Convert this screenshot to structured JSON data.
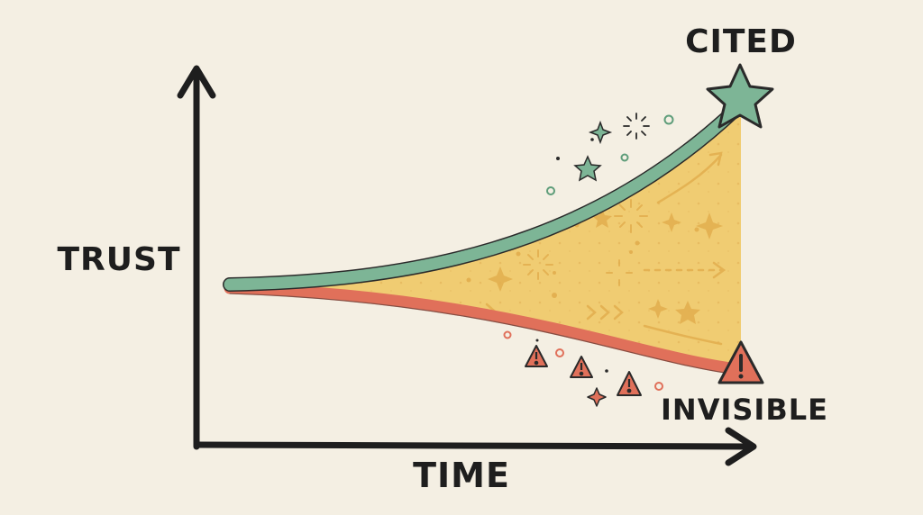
{
  "labels": {
    "y_axis": "TRUST",
    "x_axis": "TIME",
    "top_outcome": "CITED",
    "bottom_outcome": "INVISIBLE"
  },
  "colors": {
    "background": "#F4EFE3",
    "axis": "#1E1E1E",
    "cited_line": "#7DB596",
    "invisible_line": "#E0705A",
    "gap_fill": "#F0CC72",
    "warning": "#E0705A",
    "star": "#7DB596"
  },
  "icons": {
    "top_marker": "star-icon",
    "bottom_marker": "warning-icon",
    "decorations": [
      "sparkle-icon",
      "star-icon",
      "warning-icon",
      "arrow-icon"
    ]
  }
}
